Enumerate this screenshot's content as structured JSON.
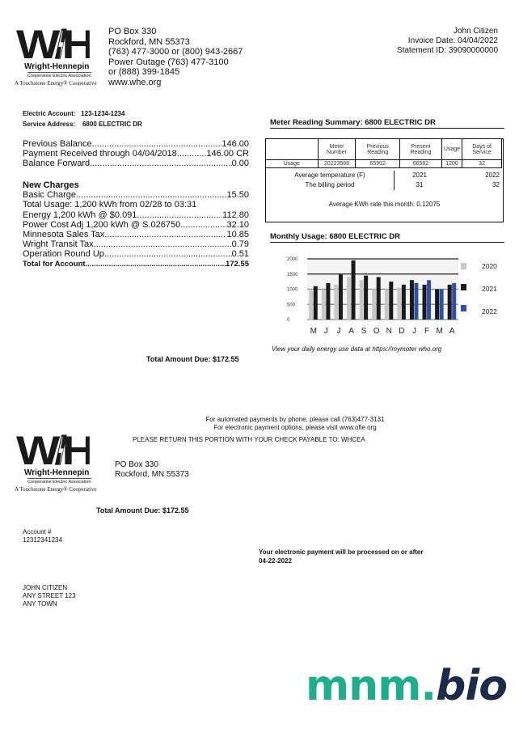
{
  "company": {
    "logo_text": "W/H",
    "name": "Wright-Hennepin",
    "subtitle": "Cooperative Electric Association",
    "tagline": "A Touchstone Energy® Cooperative",
    "address": [
      "PO Box 330",
      "Rockford, MN 55373",
      "(763) 477-3000 or (800) 943-2667",
      "Power Outage (763) 477-3100",
      "or (888) 399-1845",
      "www.whe.org"
    ]
  },
  "customer": {
    "name": "John Citizen",
    "invoice_date": "Invoice Date: 04/04/2022",
    "statement_id": "Statement ID: 39090000000"
  },
  "account": {
    "account_label": "Electric Account:",
    "account_value": "123-1234-1234",
    "service_label": "Service Address:",
    "service_value": "6800 ELECTRIC DR"
  },
  "balance": [
    {
      "label": "Previous Balance",
      "value": "146.00"
    },
    {
      "label": "Payment Received through 04/04/2018",
      "value": "146.00 CR"
    },
    {
      "label": "Balance Forward",
      "value": "0.00"
    }
  ],
  "new_charges": {
    "title": "New Charges",
    "items": [
      {
        "label": "Basic Charge",
        "value": "15.50"
      },
      {
        "label": "Total Usage: 1,200 kWh from 02/28 to 03:31",
        "value": ""
      },
      {
        "label": "Energy 1,200 kWh @ $0.091",
        "value": "112.80"
      },
      {
        "label": "Power Cost Adj 1,200 kWh @ S.026750",
        "value": "32.10"
      },
      {
        "label": "Minnesota Sales Tax",
        "value": "10.85"
      },
      {
        "label": "Wright Transit Tax",
        "value": "0.79"
      },
      {
        "label": "Operation Round Up",
        "value": "0.51"
      }
    ],
    "total_label": "Total for Account",
    "total_value": "172.55"
  },
  "total_due": "Total Amount Due: $172.55",
  "meter": {
    "title": "Meter Reading Summary: 6800 ELECTRIC DR",
    "headers": [
      "",
      "Meter Number",
      "Previous Reading",
      "Present Reading",
      "Usage",
      "Days of Service"
    ],
    "row": [
      "Usage",
      "20223568",
      "65902",
      "66582",
      "1200",
      "32"
    ],
    "temp_label": "Average temperature (F)",
    "temp_2021": "2021",
    "temp_2022": "2022",
    "period_label": "The billing period",
    "period_2021": "31",
    "period_2022": "32",
    "avg_rate": "Average KWh rate this month: 0.12075"
  },
  "chart_data": {
    "type": "bar",
    "title": "Monthly Usage: 6800 ELECTRIC DR",
    "categories": [
      "M",
      "J",
      "J",
      "A",
      "S",
      "O",
      "N",
      "D",
      "J",
      "F",
      "M",
      "A"
    ],
    "yticks": [
      "2000",
      "1500",
      "1000",
      "500",
      "0"
    ],
    "ylim": [
      0,
      2000
    ],
    "grid": true,
    "legend": "right",
    "series": [
      {
        "name": "2020",
        "color": "#c8c8c8",
        "values": [
          950,
          980,
          1150,
          1400,
          1300,
          1000,
          1000,
          1050,
          null,
          null,
          null,
          null
        ]
      },
      {
        "name": "2021",
        "color": "#1a1a1a",
        "values": [
          1100,
          1200,
          1480,
          1950,
          1450,
          1400,
          1250,
          1150,
          1300,
          1150,
          1000,
          1150
        ]
      },
      {
        "name": "2022",
        "color": "#2e4fa8",
        "values": [
          null,
          null,
          null,
          null,
          null,
          null,
          null,
          null,
          1200,
          1300,
          1000,
          1200
        ]
      }
    ]
  },
  "mymeter_text": "View your daily energy use data at https://mymoter who.org",
  "remit": {
    "phone_line": "For automated payments by phone, please call (763)477-3131",
    "web_line": "For electronic payment options, please visit www.ofie org",
    "return_line": "PLEASE RETURN THIS PORTION WITH YOUR CHECK PAYABLE TO: WHCEA",
    "address": [
      "PO Box 330",
      "Rockford, MN 55373"
    ],
    "total_due": "Total Amount Due: $172.55",
    "account_label": "Account #",
    "account_number": "12312341234",
    "epay_line1": "Your electronic payment will be processed on or after",
    "epay_line2": "04-22-2022",
    "mail": [
      "JOHN CITIZEN",
      "ANY STREET 123",
      "ANY TOWN"
    ]
  },
  "watermark": {
    "part1": "mnm.",
    "part2": "bio",
    "color1": "#1fae8c",
    "color2": "#1d2b4a"
  }
}
